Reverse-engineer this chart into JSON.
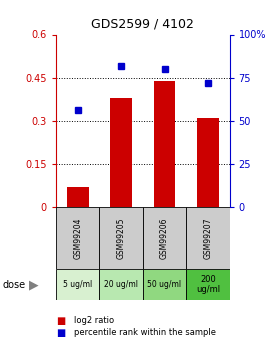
{
  "title": "GDS2599 / 4102",
  "categories": [
    "GSM99204",
    "GSM99205",
    "GSM99206",
    "GSM99207"
  ],
  "doses": [
    "5 ug/ml",
    "20 ug/ml",
    "50 ug/ml",
    "200\nug/ml"
  ],
  "dose_colors": [
    "#d8f0d0",
    "#b8e8b0",
    "#90d880",
    "#50c040"
  ],
  "log2_ratio": [
    0.07,
    0.38,
    0.44,
    0.31
  ],
  "percentile_rank": [
    56,
    82,
    80,
    72
  ],
  "bar_color": "#cc0000",
  "dot_color": "#0000cc",
  "ylim_left": [
    0,
    0.6
  ],
  "ylim_right": [
    0,
    100
  ],
  "yticks_left": [
    0,
    0.15,
    0.3,
    0.45,
    0.6
  ],
  "yticks_right": [
    0,
    25,
    50,
    75,
    100
  ],
  "ytick_labels_left": [
    "0",
    "0.15",
    "0.3",
    "0.45",
    "0.6"
  ],
  "ytick_labels_right": [
    "0",
    "25",
    "50",
    "75",
    "100%"
  ],
  "left_axis_color": "#cc0000",
  "right_axis_color": "#0000cc",
  "grid_yticks": [
    0.15,
    0.3,
    0.45
  ],
  "bar_width": 0.5,
  "legend_labels": [
    "log2 ratio",
    "percentile rank within the sample"
  ],
  "legend_colors": [
    "#cc0000",
    "#0000cc"
  ],
  "sample_box_color": "#cccccc",
  "fig_width": 2.8,
  "fig_height": 3.45,
  "dpi": 100
}
